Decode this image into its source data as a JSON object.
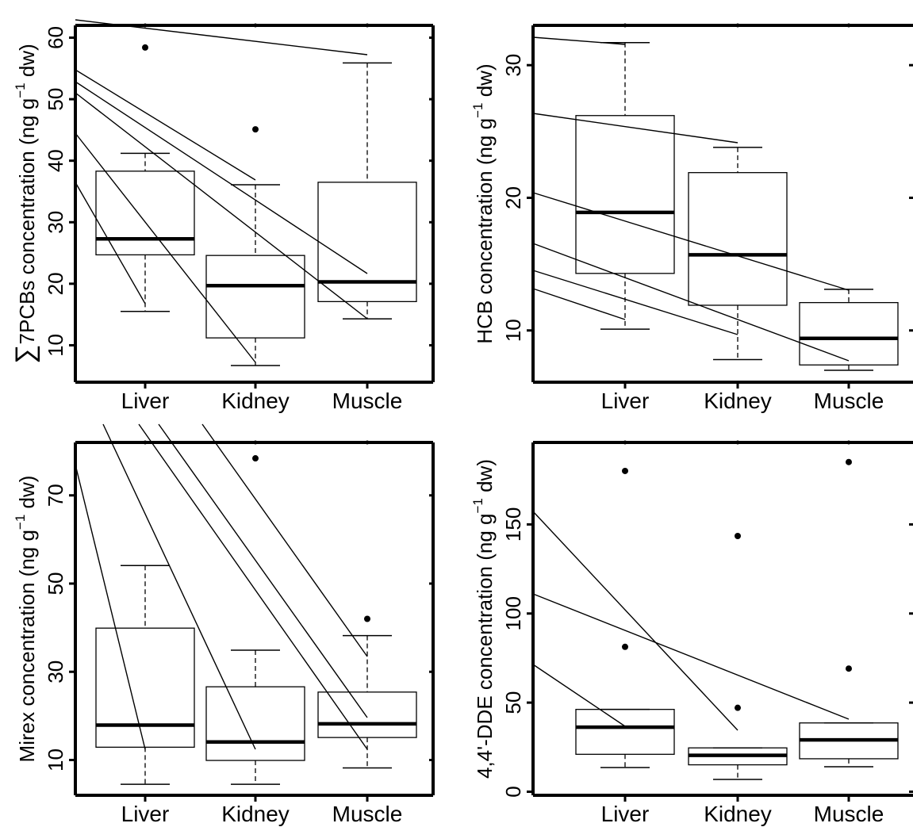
{
  "chart_data": [
    {
      "type": "boxplot",
      "ylabel": "∑7PCBs concentration (ng g⁻¹ dw)",
      "ylabel_parts": {
        "prefix": "∑",
        "main": "7PCBs concentration (ng g",
        "sup": "−1",
        "suffix": " dw)"
      },
      "categories": [
        "Liver",
        "Kidney",
        "Muscle"
      ],
      "yticks": [
        "10",
        "20",
        "30",
        "40",
        "50",
        "60"
      ],
      "ylim": [
        4,
        62
      ],
      "boxes": [
        {
          "name": "Liver",
          "whisker_low": 15.5,
          "q1": 24.7,
          "median": 27.3,
          "q3": 38.3,
          "whisker_high": 41.2,
          "outliers": [
            58.4
          ]
        },
        {
          "name": "Kidney",
          "whisker_low": 6.7,
          "q1": 11.2,
          "median": 19.7,
          "q3": 24.6,
          "whisker_high": 36.1,
          "outliers": [
            45.1
          ]
        },
        {
          "name": "Muscle",
          "whisker_low": 14.3,
          "q1": 17.1,
          "median": 20.3,
          "q3": 36.5,
          "whisker_high": 55.9,
          "outliers": []
        }
      ]
    },
    {
      "type": "boxplot",
      "ylabel": "HCB concentration (ng g⁻¹ dw)",
      "ylabel_parts": {
        "prefix": "",
        "main": "HCB concentration (ng g",
        "sup": "−1",
        "suffix": " dw)"
      },
      "categories": [
        "Liver",
        "Kidney",
        "Muscle"
      ],
      "yticks": [
        "10",
        "20",
        "30"
      ],
      "ylim": [
        6.1,
        33
      ],
      "boxes": [
        {
          "name": "Liver",
          "whisker_low": 10.1,
          "q1": 14.3,
          "median": 18.9,
          "q3": 26.2,
          "whisker_high": 31.7,
          "outliers": []
        },
        {
          "name": "Kidney",
          "whisker_low": 7.8,
          "q1": 11.9,
          "median": 15.7,
          "q3": 21.9,
          "whisker_high": 23.8,
          "outliers": []
        },
        {
          "name": "Muscle",
          "whisker_low": 7.0,
          "q1": 7.4,
          "median": 9.4,
          "q3": 12.1,
          "whisker_high": 13.1,
          "outliers": []
        }
      ]
    },
    {
      "type": "boxplot",
      "ylabel": "Mirex concentration (ng g⁻¹ dw)",
      "ylabel_parts": {
        "prefix": "",
        "main": "Mirex concentration (ng g",
        "sup": "−1",
        "suffix": " dw)"
      },
      "categories": [
        "Liver",
        "Kidney",
        "Muscle"
      ],
      "yticks": [
        "10",
        "30",
        "50",
        "70"
      ],
      "ylim": [
        2,
        82
      ],
      "boxes": [
        {
          "name": "Liver",
          "whisker_low": 4.5,
          "q1": 12.9,
          "median": 17.9,
          "q3": 39.9,
          "whisker_high": 54.1,
          "outliers": []
        },
        {
          "name": "Kidney",
          "whisker_low": 4.5,
          "q1": 9.9,
          "median": 14.1,
          "q3": 26.6,
          "whisker_high": 34.9,
          "outliers": [
            78.4
          ]
        },
        {
          "name": "Muscle",
          "whisker_low": 8.2,
          "q1": 15.1,
          "median": 18.2,
          "q3": 25.4,
          "whisker_high": 38.2,
          "outliers": [
            42.0
          ]
        }
      ]
    },
    {
      "type": "boxplot",
      "ylabel": "4,4'-DDE concentration (ng g⁻¹ dw)",
      "ylabel_parts": {
        "prefix": "",
        "main": "4,4'-DDE concentration (ng g",
        "sup": "−1",
        "suffix": " dw)"
      },
      "categories": [
        "Liver",
        "Kidney",
        "Muscle"
      ],
      "yticks": [
        "0",
        "50",
        "100",
        "150"
      ],
      "ylim": [
        -2,
        196
      ],
      "boxes": [
        {
          "name": "Liver",
          "whisker_low": 13.6,
          "q1": 21.0,
          "median": 36.2,
          "q3": 46.2,
          "whisker_high": 46.2,
          "outliers": [
            81.3,
            180.0
          ]
        },
        {
          "name": "Kidney",
          "whisker_low": 6.9,
          "q1": 15.1,
          "median": 20.4,
          "q3": 24.6,
          "whisker_high": 24.6,
          "outliers": [
            47.1,
            143.5
          ]
        },
        {
          "name": "Muscle",
          "whisker_low": 14.0,
          "q1": 18.5,
          "median": 29.1,
          "q3": 38.6,
          "whisker_high": 38.6,
          "outliers": [
            69.1,
            185.0
          ]
        }
      ]
    }
  ]
}
